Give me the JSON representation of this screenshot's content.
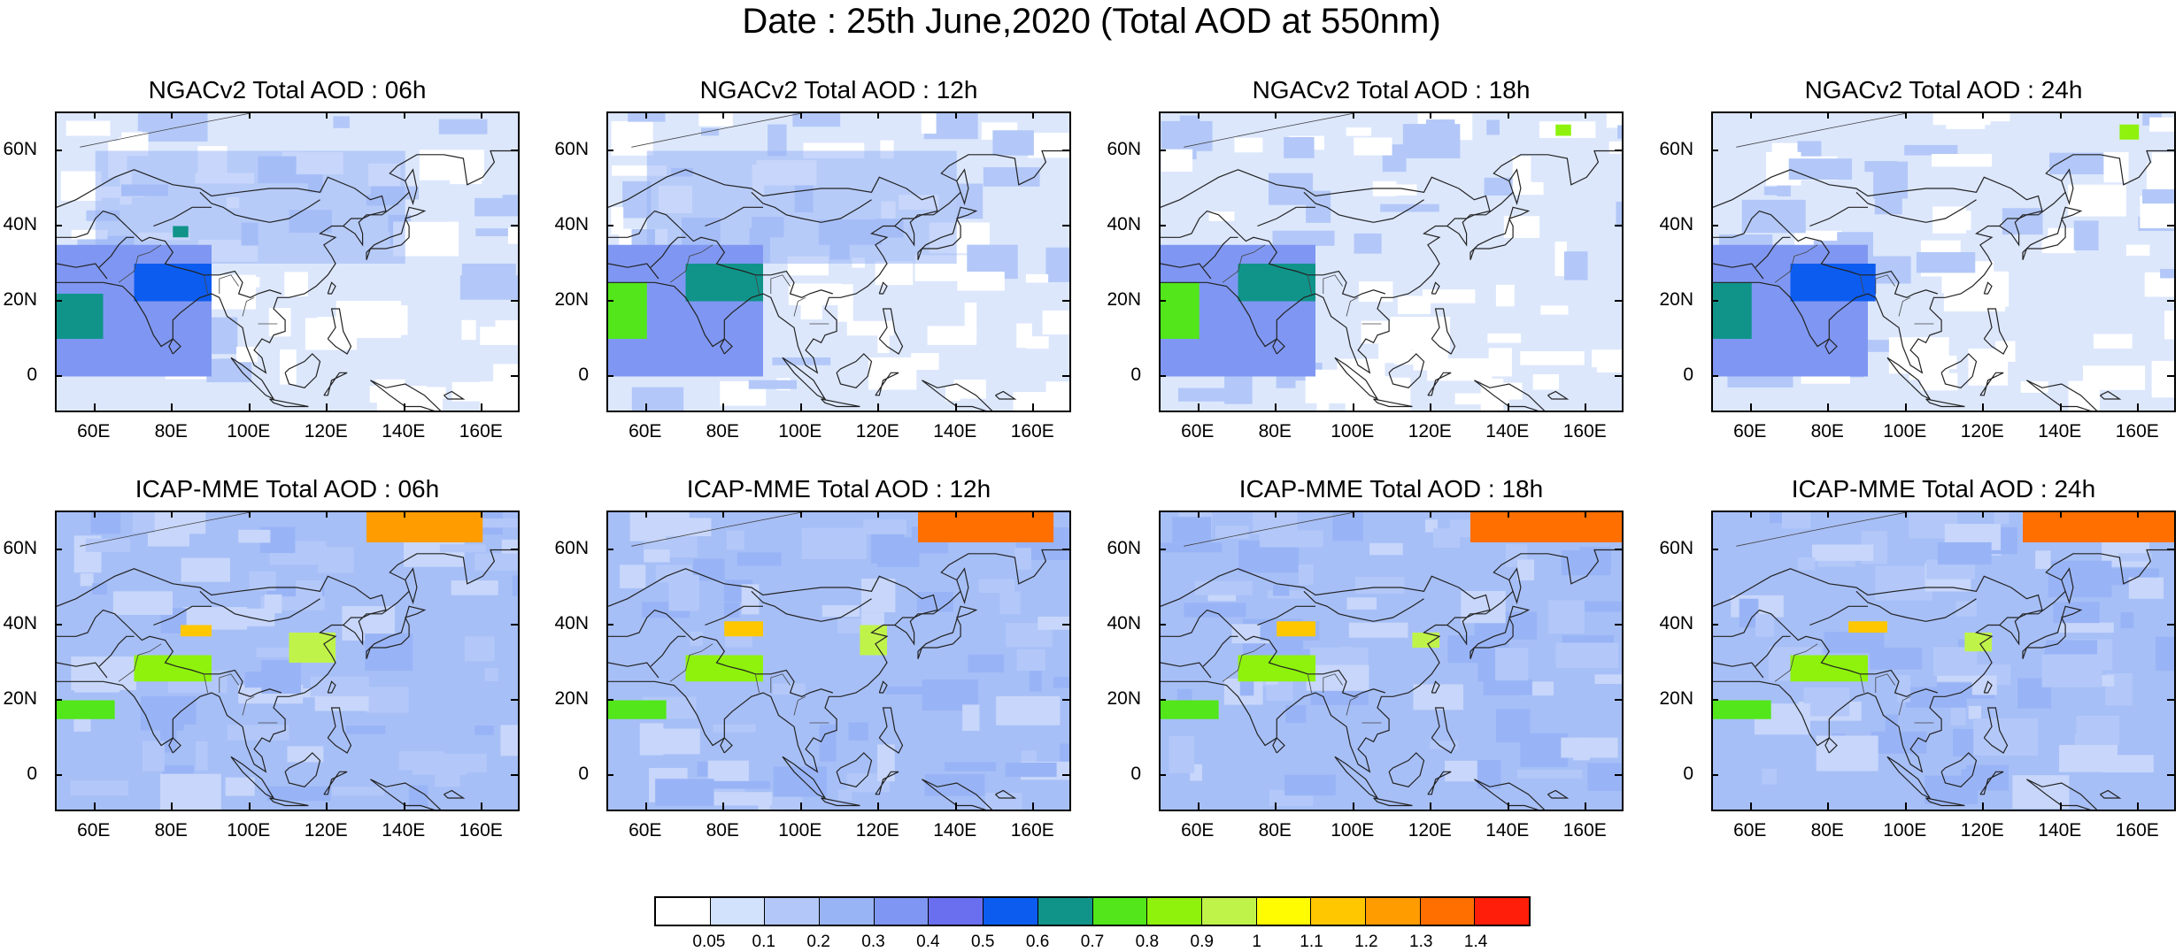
{
  "title": "Date : 25th June,2020 (Total AOD at 550nm)",
  "lat_labels": [
    "60N",
    "40N",
    "20N",
    "0"
  ],
  "lon_labels": [
    "60E",
    "80E",
    "100E",
    "120E",
    "140E",
    "160E"
  ],
  "panels": [
    {
      "title": "NGACv2 Total AOD : 06h"
    },
    {
      "title": "NGACv2 Total AOD : 12h"
    },
    {
      "title": "NGACv2 Total AOD : 18h"
    },
    {
      "title": "NGACv2 Total AOD : 24h"
    },
    {
      "title": "ICAP-MME Total AOD : 06h"
    },
    {
      "title": "ICAP-MME Total AOD : 12h"
    },
    {
      "title": "ICAP-MME Total AOD : 18h"
    },
    {
      "title": "ICAP-MME Total AOD : 24h"
    }
  ],
  "colorbar": {
    "labels": [
      "0.05",
      "0.1",
      "0.2",
      "0.3",
      "0.4",
      "0.5",
      "0.6",
      "0.7",
      "0.8",
      "0.9",
      "1",
      "1.1",
      "1.2",
      "1.3",
      "1.4"
    ],
    "colors": [
      "#ffffff",
      "#d2e1fc",
      "#b3c8f8",
      "#99b4f5",
      "#7f97f2",
      "#6a6fef",
      "#0c5cf0",
      "#10948a",
      "#52e61b",
      "#8ef20d",
      "#c0f34a",
      "#fffb00",
      "#ffc700",
      "#ff9c00",
      "#ff6f00",
      "#ff1e0a"
    ]
  },
  "chart_data": {
    "type": "heatmap",
    "title": "Date : 25th June,2020 (Total AOD at 550nm)",
    "variable": "Total AOD at 550nm",
    "xlim": [
      50,
      170
    ],
    "ylim": [
      -10,
      70
    ],
    "xticks": [
      "60E",
      "80E",
      "100E",
      "120E",
      "140E",
      "160E"
    ],
    "yticks": [
      "60N",
      "40N",
      "20N",
      "0"
    ],
    "levels": [
      0.05,
      0.1,
      0.2,
      0.3,
      0.4,
      0.5,
      0.6,
      0.7,
      0.8,
      0.9,
      1,
      1.1,
      1.2,
      1.3,
      1.4
    ],
    "panels": [
      {
        "model": "NGACv2",
        "lead": "06h",
        "features": [
          {
            "lon": [
              50,
              62
            ],
            "lat": [
              10,
              22
            ],
            "aod": 0.6
          },
          {
            "lon": [
              70,
              90
            ],
            "lat": [
              20,
              30
            ],
            "aod": 0.5
          },
          {
            "lon": [
              80,
              84
            ],
            "lat": [
              37,
              40
            ],
            "aod": 0.6
          },
          {
            "lon": [
              50,
              90
            ],
            "lat": [
              0,
              35
            ],
            "aod": 0.3
          },
          {
            "lon": [
              60,
              140
            ],
            "lat": [
              30,
              60
            ],
            "aod": 0.2
          }
        ]
      },
      {
        "model": "NGACv2",
        "lead": "12h",
        "features": [
          {
            "lon": [
              50,
              60
            ],
            "lat": [
              10,
              25
            ],
            "aod": 0.7
          },
          {
            "lon": [
              70,
              90
            ],
            "lat": [
              20,
              30
            ],
            "aod": 0.6
          },
          {
            "lon": [
              50,
              90
            ],
            "lat": [
              0,
              35
            ],
            "aod": 0.3
          },
          {
            "lon": [
              60,
              140
            ],
            "lat": [
              30,
              60
            ],
            "aod": 0.2
          }
        ]
      },
      {
        "model": "NGACv2",
        "lead": "18h",
        "features": [
          {
            "lon": [
              50,
              60
            ],
            "lat": [
              10,
              25
            ],
            "aod": 0.7
          },
          {
            "lon": [
              70,
              90
            ],
            "lat": [
              20,
              30
            ],
            "aod": 0.6
          },
          {
            "lon": [
              152,
              156
            ],
            "lat": [
              64,
              67
            ],
            "aod": 0.8
          },
          {
            "lon": [
              50,
              90
            ],
            "lat": [
              0,
              35
            ],
            "aod": 0.3
          }
        ]
      },
      {
        "model": "NGACv2",
        "lead": "24h",
        "features": [
          {
            "lon": [
              50,
              60
            ],
            "lat": [
              10,
              25
            ],
            "aod": 0.6
          },
          {
            "lon": [
              70,
              92
            ],
            "lat": [
              20,
              30
            ],
            "aod": 0.5
          },
          {
            "lon": [
              155,
              160
            ],
            "lat": [
              63,
              67
            ],
            "aod": 0.8
          },
          {
            "lon": [
              50,
              90
            ],
            "lat": [
              0,
              35
            ],
            "aod": 0.3
          }
        ]
      },
      {
        "model": "ICAP-MME",
        "lead": "06h",
        "features": [
          {
            "lon": [
              130,
              160
            ],
            "lat": [
              62,
              70
            ],
            "aod": 1.2
          },
          {
            "lon": [
              82,
              90
            ],
            "lat": [
              37,
              40
            ],
            "aod": 1.1
          },
          {
            "lon": [
              110,
              122
            ],
            "lat": [
              30,
              38
            ],
            "aod": 0.9
          },
          {
            "lon": [
              70,
              90
            ],
            "lat": [
              25,
              32
            ],
            "aod": 0.8
          },
          {
            "lon": [
              50,
              65
            ],
            "lat": [
              15,
              20
            ],
            "aod": 0.7
          },
          {
            "lon": [
              50,
              170
            ],
            "lat": [
              -10,
              70
            ],
            "aod": 0.2
          }
        ]
      },
      {
        "model": "ICAP-MME",
        "lead": "12h",
        "features": [
          {
            "lon": [
              130,
              165
            ],
            "lat": [
              62,
              70
            ],
            "aod": 1.3
          },
          {
            "lon": [
              80,
              90
            ],
            "lat": [
              37,
              41
            ],
            "aod": 1.1
          },
          {
            "lon": [
              115,
              122
            ],
            "lat": [
              32,
              40
            ],
            "aod": 0.9
          },
          {
            "lon": [
              70,
              90
            ],
            "lat": [
              25,
              32
            ],
            "aod": 0.8
          },
          {
            "lon": [
              50,
              65
            ],
            "lat": [
              15,
              20
            ],
            "aod": 0.7
          },
          {
            "lon": [
              50,
              170
            ],
            "lat": [
              -10,
              70
            ],
            "aod": 0.2
          }
        ]
      },
      {
        "model": "ICAP-MME",
        "lead": "18h",
        "features": [
          {
            "lon": [
              130,
              170
            ],
            "lat": [
              62,
              70
            ],
            "aod": 1.3
          },
          {
            "lon": [
              80,
              90
            ],
            "lat": [
              37,
              41
            ],
            "aod": 1.1
          },
          {
            "lon": [
              115,
              122
            ],
            "lat": [
              34,
              38
            ],
            "aod": 0.9
          },
          {
            "lon": [
              70,
              90
            ],
            "lat": [
              25,
              32
            ],
            "aod": 0.8
          },
          {
            "lon": [
              50,
              65
            ],
            "lat": [
              15,
              20
            ],
            "aod": 0.7
          },
          {
            "lon": [
              50,
              170
            ],
            "lat": [
              -10,
              70
            ],
            "aod": 0.2
          }
        ]
      },
      {
        "model": "ICAP-MME",
        "lead": "24h",
        "features": [
          {
            "lon": [
              130,
              170
            ],
            "lat": [
              62,
              70
            ],
            "aod": 1.3
          },
          {
            "lon": [
              85,
              95
            ],
            "lat": [
              38,
              41
            ],
            "aod": 1.1
          },
          {
            "lon": [
              115,
              122
            ],
            "lat": [
              33,
              38
            ],
            "aod": 0.9
          },
          {
            "lon": [
              70,
              90
            ],
            "lat": [
              25,
              32
            ],
            "aod": 0.8
          },
          {
            "lon": [
              50,
              65
            ],
            "lat": [
              15,
              20
            ],
            "aod": 0.7
          },
          {
            "lon": [
              50,
              170
            ],
            "lat": [
              -10,
              70
            ],
            "aod": 0.2
          }
        ]
      }
    ]
  }
}
